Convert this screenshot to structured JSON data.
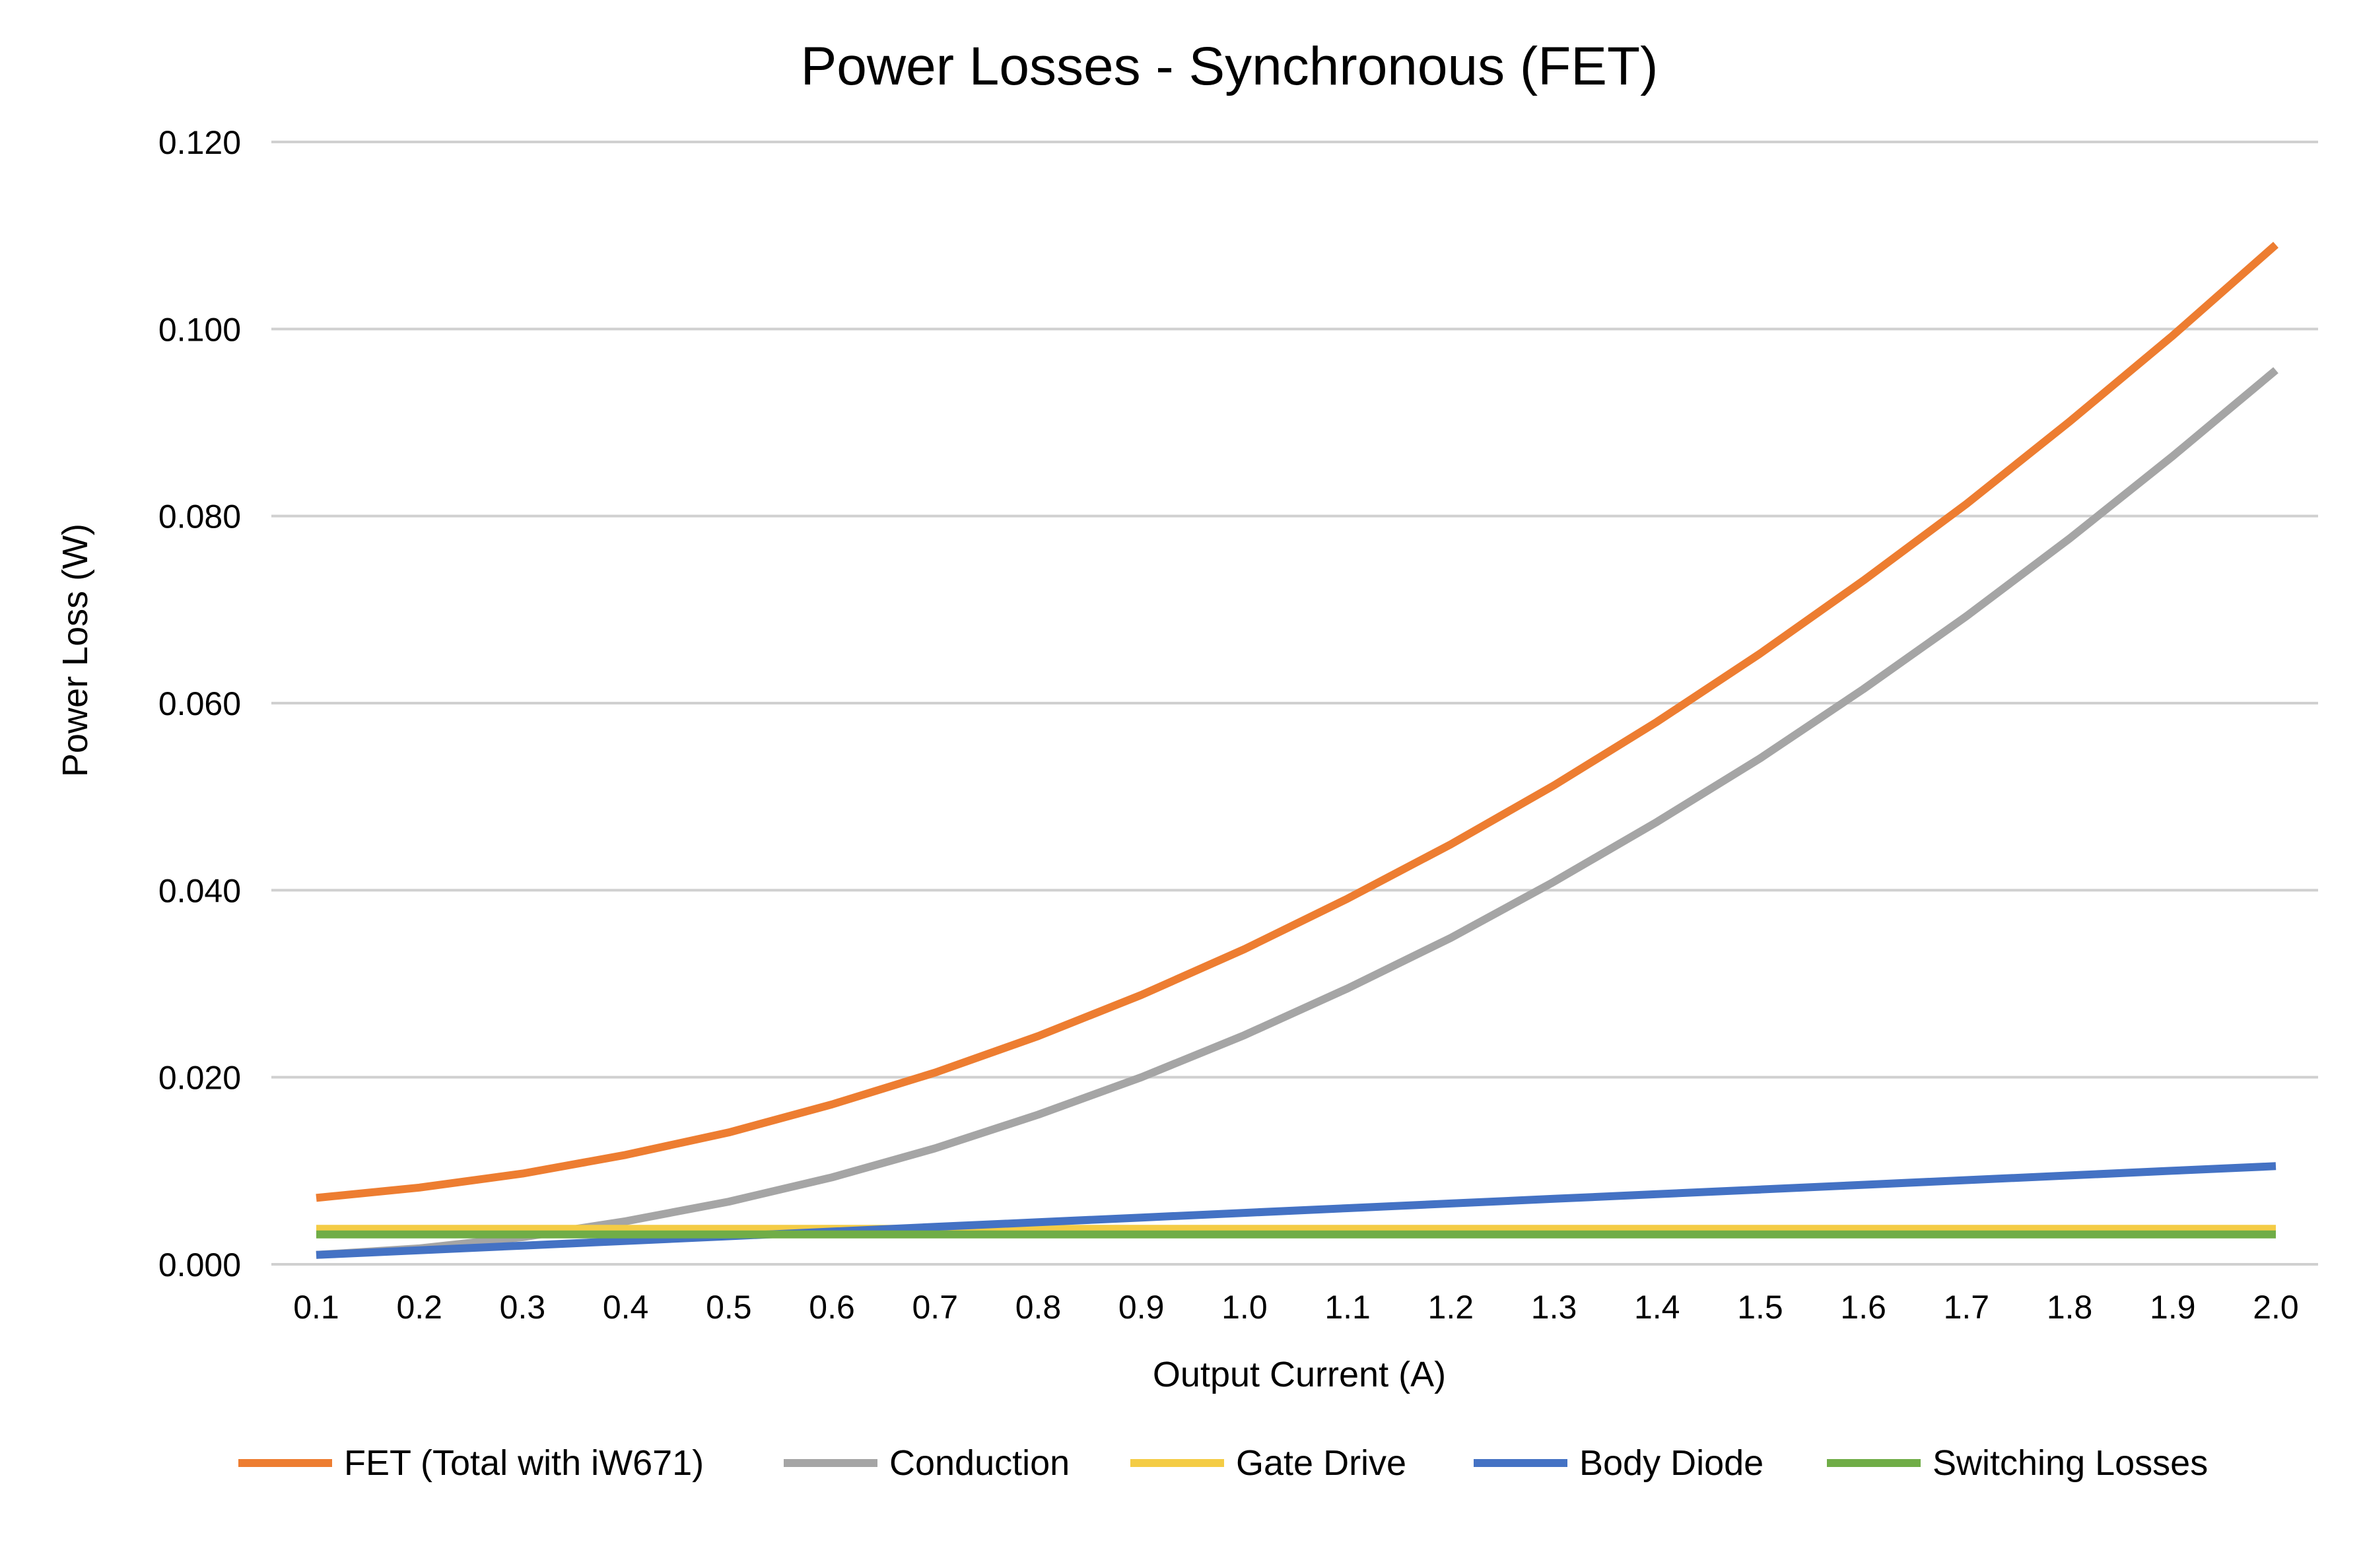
{
  "chart_data": {
    "type": "line",
    "title": "Power Losses - Synchronous (FET)",
    "xlabel": "Output Current (A)",
    "ylabel": "Power Loss (W)",
    "ylim": [
      0,
      0.12
    ],
    "yticks": [
      "0.000",
      "0.020",
      "0.040",
      "0.060",
      "0.080",
      "0.100",
      "0.120"
    ],
    "x": [
      "0.1",
      "0.2",
      "0.3",
      "0.4",
      "0.5",
      "0.6",
      "0.7",
      "0.8",
      "0.9",
      "1.0",
      "1.1",
      "1.2",
      "1.3",
      "1.4",
      "1.5",
      "1.6",
      "1.7",
      "1.8",
      "1.9",
      "2.0"
    ],
    "grid": "horizontal",
    "legend_position": "bottom",
    "series": [
      {
        "name": "FET (Total with iW671)",
        "color": "#ED7D31",
        "values": [
          0.0071,
          0.0082,
          0.0097,
          0.0117,
          0.0141,
          0.0171,
          0.0205,
          0.0244,
          0.0288,
          0.0337,
          0.0391,
          0.0449,
          0.0512,
          0.058,
          0.0653,
          0.0731,
          0.0813,
          0.0901,
          0.0993,
          0.109
        ]
      },
      {
        "name": "Conduction",
        "color": "#A5A5A5",
        "values": [
          0.001,
          0.0017,
          0.0029,
          0.0046,
          0.0067,
          0.0093,
          0.0124,
          0.016,
          0.02,
          0.0245,
          0.0295,
          0.0349,
          0.0409,
          0.0473,
          0.0541,
          0.0615,
          0.0693,
          0.0776,
          0.0864,
          0.0956
        ]
      },
      {
        "name": "Gate Drive",
        "color": "#F4CC45",
        "values": [
          0.0038,
          0.0038,
          0.0038,
          0.0038,
          0.0038,
          0.0038,
          0.0038,
          0.0038,
          0.0038,
          0.0038,
          0.0038,
          0.0038,
          0.0038,
          0.0038,
          0.0038,
          0.0038,
          0.0038,
          0.0038,
          0.0038,
          0.0038
        ]
      },
      {
        "name": "Body Diode",
        "color": "#4472C4",
        "values": [
          0.001,
          0.0015,
          0.002,
          0.0025,
          0.003,
          0.0035,
          0.004,
          0.0045,
          0.005,
          0.0055,
          0.006,
          0.0065,
          0.007,
          0.0075,
          0.008,
          0.0085,
          0.009,
          0.0095,
          0.01,
          0.0105
        ]
      },
      {
        "name": "Switching Losses",
        "color": "#70AD47",
        "values": [
          0.0032,
          0.0032,
          0.0032,
          0.0032,
          0.0032,
          0.0032,
          0.0032,
          0.0032,
          0.0032,
          0.0032,
          0.0032,
          0.0032,
          0.0032,
          0.0032,
          0.0032,
          0.0032,
          0.0032,
          0.0032,
          0.0032,
          0.0032
        ]
      }
    ]
  }
}
